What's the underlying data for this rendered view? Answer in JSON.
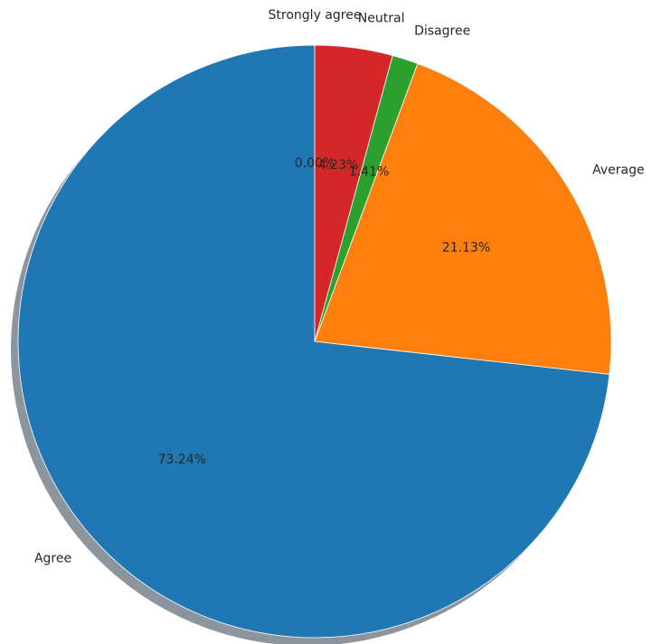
{
  "chart_data": {
    "type": "pie",
    "categories": [
      "Strongly agree",
      "Agree",
      "Average",
      "Disagree",
      "Neutral"
    ],
    "values": [
      0.0,
      73.24,
      21.13,
      1.41,
      4.23
    ],
    "percent_labels": [
      "0.00%",
      "73.24%",
      "21.13%",
      "1.41%",
      "4.23%"
    ],
    "colors": [
      "#9467bd",
      "#1f77b4",
      "#ff7f0e",
      "#2ca02c",
      "#d62728"
    ],
    "start_angle": 90,
    "direction": "counterclockwise",
    "shadow": true,
    "legend": "none"
  }
}
